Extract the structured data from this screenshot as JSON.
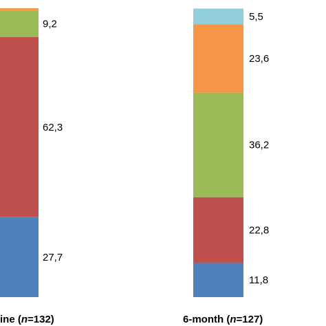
{
  "chart_data": {
    "type": "bar",
    "stacked": true,
    "categories": [
      {
        "prefix": "ine (",
        "n_symbol": "n",
        "suffix": "=132)"
      },
      {
        "prefix": "6-month (",
        "n_symbol": "n",
        "suffix": "=127)"
      }
    ],
    "series": [
      {
        "color": "#4f81bd",
        "values": [
          27.7,
          11.8
        ],
        "labels": [
          "27,7",
          "11,8"
        ]
      },
      {
        "color": "#c0504d",
        "values": [
          62.3,
          22.8
        ],
        "labels": [
          "62,3",
          "22,8"
        ]
      },
      {
        "color": "#9bbb59",
        "values": [
          9.2,
          36.2
        ],
        "labels": [
          "9,2",
          "36,2"
        ]
      },
      {
        "color": "#f79646",
        "values": [
          0.8,
          23.6
        ],
        "labels": [
          "",
          "23,6"
        ]
      },
      {
        "color": "#92cddc",
        "values": [
          0,
          5.5
        ],
        "labels": [
          "",
          "5,5"
        ]
      }
    ],
    "ylim": [
      0,
      100
    ],
    "grid": false,
    "legend": "none"
  }
}
